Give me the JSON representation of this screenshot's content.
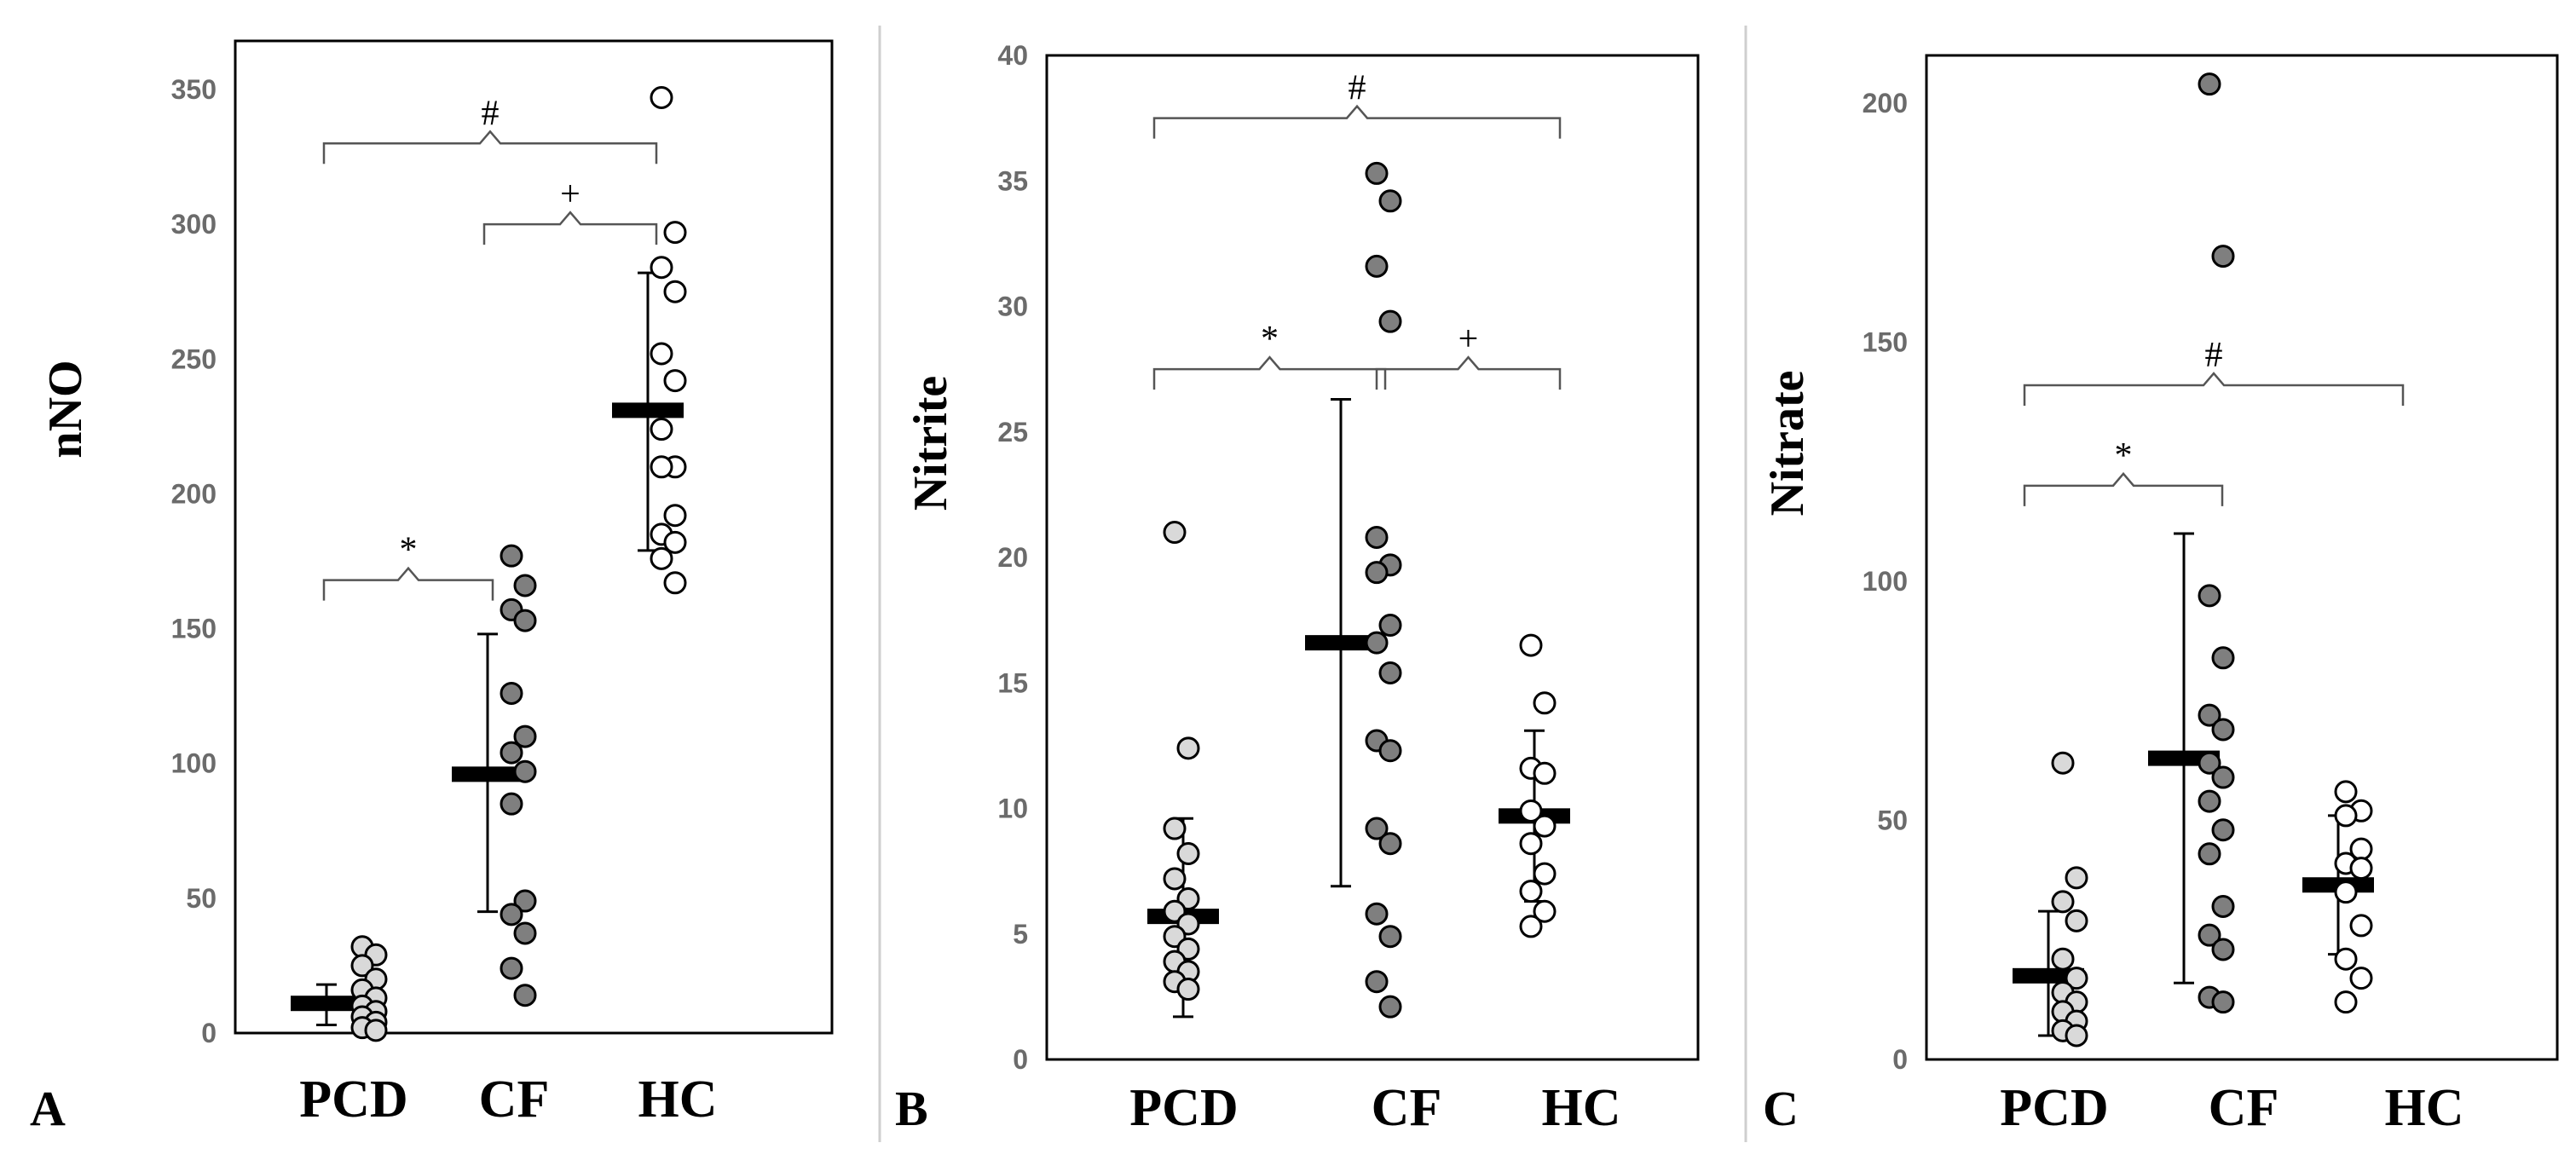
{
  "chart_data": [
    {
      "type": "scatter",
      "panel_label": "A",
      "ylabel": "nNO",
      "ylim": [
        0,
        350
      ],
      "yticks": [
        0,
        50,
        100,
        150,
        200,
        250,
        300,
        350
      ],
      "categories": [
        "PCD",
        "CF",
        "HC"
      ],
      "series": [
        {
          "name": "PCD",
          "fill": "#d9d9d9",
          "mean": 11,
          "err_low": 3,
          "err_high": 18,
          "values": [
            32,
            29,
            25,
            20,
            16,
            13,
            10,
            8,
            6,
            4,
            2,
            1
          ]
        },
        {
          "name": "CF",
          "fill": "#7f7f7f",
          "mean": 96,
          "err_low": 45,
          "err_high": 148,
          "values": [
            177,
            166,
            157,
            153,
            126,
            110,
            104,
            97,
            85,
            49,
            44,
            37,
            24,
            14
          ]
        },
        {
          "name": "HC",
          "fill": "#ffffff",
          "mean": 231,
          "err_low": 179,
          "err_high": 282,
          "values": [
            347,
            297,
            284,
            275,
            252,
            242,
            224,
            210,
            210,
            192,
            185,
            182,
            176,
            167
          ]
        }
      ],
      "comparisons": [
        {
          "from": 0,
          "to": 1,
          "symbol": "*",
          "y": 168
        },
        {
          "from": 1,
          "to": 2,
          "symbol": "+",
          "y": 300
        },
        {
          "from": 0,
          "to": 2,
          "symbol": "#",
          "y": 330
        }
      ]
    },
    {
      "type": "scatter",
      "panel_label": "B",
      "ylabel": "Nitrite",
      "ylim": [
        0,
        40
      ],
      "yticks": [
        0,
        5,
        10,
        15,
        20,
        25,
        30,
        35,
        40
      ],
      "categories": [
        "PCD",
        "CF",
        "HC"
      ],
      "series": [
        {
          "name": "PCD",
          "fill": "#d9d9d9",
          "mean": 5.7,
          "err_low": 1.7,
          "err_high": 9.6,
          "values": [
            21.0,
            12.4,
            9.2,
            8.2,
            7.2,
            6.4,
            5.9,
            5.4,
            4.9,
            4.4,
            3.9,
            3.5,
            3.1,
            2.8
          ]
        },
        {
          "name": "CF",
          "fill": "#7f7f7f",
          "mean": 16.6,
          "err_low": 6.9,
          "err_high": 26.3,
          "values": [
            35.3,
            34.2,
            31.6,
            29.4,
            20.8,
            19.7,
            19.4,
            17.3,
            16.6,
            15.4,
            12.7,
            12.3,
            9.2,
            8.6,
            5.8,
            4.9,
            3.1,
            2.1
          ]
        },
        {
          "name": "HC",
          "fill": "#ffffff",
          "mean": 9.7,
          "err_low": 6.3,
          "err_high": 13.1,
          "values": [
            16.5,
            14.2,
            11.6,
            11.4,
            9.9,
            9.3,
            8.6,
            7.4,
            6.7,
            5.9,
            5.3
          ]
        }
      ],
      "comparisons": [
        {
          "from": 0,
          "to": 1,
          "symbol": "*",
          "y": 27.5
        },
        {
          "from": 1,
          "to": 2,
          "symbol": "+",
          "y": 27.5
        },
        {
          "from": 0,
          "to": 2,
          "symbol": "#",
          "y": 37.5
        }
      ]
    },
    {
      "type": "scatter",
      "panel_label": "C",
      "ylabel": "Nitrate",
      "ylim": [
        0,
        210
      ],
      "yticks": [
        0,
        50,
        100,
        150,
        200
      ],
      "categories": [
        "PCD",
        "CF",
        "HC"
      ],
      "series": [
        {
          "name": "PCD",
          "fill": "#d9d9d9",
          "mean": 17.5,
          "err_low": 5,
          "err_high": 31,
          "values": [
            62,
            38,
            33,
            29,
            21,
            17,
            14,
            12,
            10,
            8,
            6,
            5
          ]
        },
        {
          "name": "CF",
          "fill": "#7f7f7f",
          "mean": 63,
          "err_low": 16,
          "err_high": 110,
          "values": [
            204,
            168,
            97,
            84,
            72,
            69,
            62,
            59,
            54,
            48,
            43,
            32,
            26,
            23,
            13,
            12
          ]
        },
        {
          "name": "HC",
          "fill": "#ffffff",
          "mean": 36.5,
          "err_low": 22,
          "err_high": 51,
          "values": [
            56,
            52,
            51,
            44,
            41,
            40,
            35,
            28,
            21,
            17,
            12
          ]
        }
      ],
      "comparisons": [
        {
          "from": 0,
          "to": 1,
          "symbol": "*",
          "y": 120
        },
        {
          "from": 0,
          "to": 2,
          "symbol": "#",
          "y": 141
        }
      ]
    }
  ]
}
